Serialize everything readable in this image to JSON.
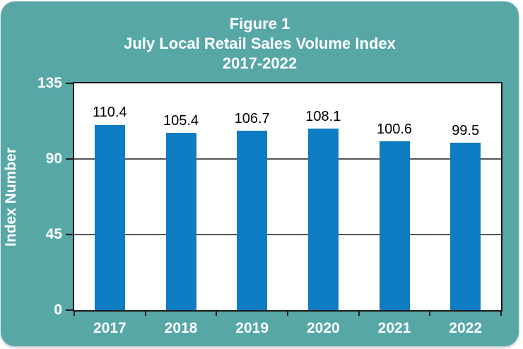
{
  "figure": {
    "title_line1": "Figure 1",
    "title_line2": "July Local Retail Sales Volume Index",
    "title_line3": "2017-2022"
  },
  "chart_data": {
    "type": "bar",
    "title": "Figure 1",
    "subtitle": "July Local Retail Sales Volume Index 2017-2022",
    "categories": [
      "2017",
      "2018",
      "2019",
      "2020",
      "2021",
      "2022"
    ],
    "values": [
      110.4,
      105.4,
      106.7,
      108.1,
      100.6,
      99.5
    ],
    "data_labels": [
      "110.4",
      "105.4",
      "106.7",
      "108.1",
      "100.6",
      "99.5"
    ],
    "xlabel": "",
    "ylabel": "Index Number",
    "ylim": [
      0,
      135
    ],
    "yticks": [
      0,
      45,
      90,
      135
    ],
    "grid": "horizontal",
    "legend": "none"
  },
  "colors": {
    "card_background": "#57A7A7",
    "plot_background": "#FFFFFF",
    "bar_fill": "#0E7CC3",
    "axis_line": "#1A1A1A",
    "gridline": "#555555",
    "title_text": "#FFFFFF",
    "axis_text": "#FFFFFF",
    "data_label_text": "#000000"
  }
}
